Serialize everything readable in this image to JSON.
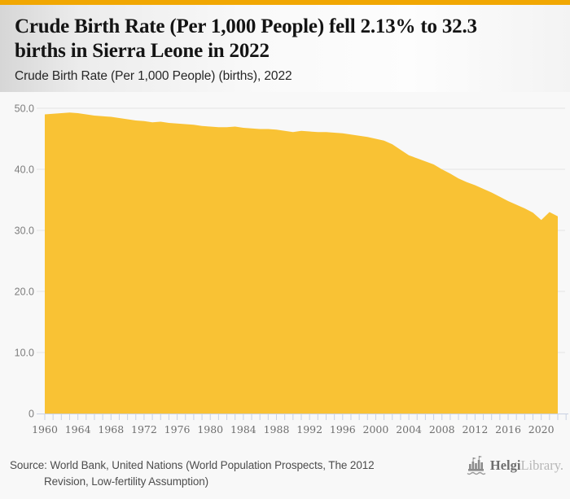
{
  "page": {
    "accent_bar_color": "#F1A702",
    "background_color": "#f8f8f8"
  },
  "header": {
    "title_line1": "Crude Birth Rate (Per 1,000 People) fell 2.13% to 32.3",
    "title_line2": "births in Sierra Leone in 2022",
    "title_full": "Crude Birth Rate (Per 1,000 People) fell 2.13% to 32.3 births in Sierra Leone in 2022",
    "subtitle": "Crude Birth Rate (Per 1,000 People) (births), 2022"
  },
  "chart_data": {
    "type": "area",
    "title": "Crude Birth Rate (Per 1,000 People) (births), 2022",
    "series_name": "Crude Birth Rate (Per 1,000 People)",
    "unit": "births",
    "area_color": "#F9C234",
    "grid": true,
    "legend_position": "none",
    "xlabel": "",
    "ylabel": "",
    "xlim": [
      1960,
      2023
    ],
    "ylim": [
      0,
      50
    ],
    "x": [
      1960,
      1961,
      1962,
      1963,
      1964,
      1965,
      1966,
      1967,
      1968,
      1969,
      1970,
      1971,
      1972,
      1973,
      1974,
      1975,
      1976,
      1977,
      1978,
      1979,
      1980,
      1981,
      1982,
      1983,
      1984,
      1985,
      1986,
      1987,
      1988,
      1989,
      1990,
      1991,
      1992,
      1993,
      1994,
      1995,
      1996,
      1997,
      1998,
      1999,
      2000,
      2001,
      2002,
      2003,
      2004,
      2005,
      2006,
      2007,
      2008,
      2009,
      2010,
      2011,
      2012,
      2013,
      2014,
      2015,
      2016,
      2017,
      2018,
      2019,
      2020,
      2021,
      2022
    ],
    "values": [
      49.0,
      49.1,
      49.2,
      49.3,
      49.2,
      49.0,
      48.8,
      48.7,
      48.6,
      48.4,
      48.2,
      48.0,
      47.9,
      47.7,
      47.8,
      47.6,
      47.5,
      47.4,
      47.3,
      47.1,
      47.0,
      46.9,
      46.9,
      47.0,
      46.8,
      46.7,
      46.6,
      46.6,
      46.5,
      46.3,
      46.1,
      46.3,
      46.2,
      46.1,
      46.1,
      46.0,
      45.9,
      45.7,
      45.5,
      45.3,
      45.0,
      44.7,
      44.1,
      43.2,
      42.3,
      41.8,
      41.3,
      40.8,
      40.0,
      39.3,
      38.5,
      37.9,
      37.4,
      36.8,
      36.2,
      35.5,
      34.8,
      34.2,
      33.6,
      32.9,
      31.7,
      33.0,
      32.3
    ],
    "yticks": [
      {
        "value": 0,
        "label": "0"
      },
      {
        "value": 10,
        "label": "10.0"
      },
      {
        "value": 20,
        "label": "20.0"
      },
      {
        "value": 30,
        "label": "30.0"
      },
      {
        "value": 40,
        "label": "40.0"
      },
      {
        "value": 50,
        "label": "50.0"
      }
    ],
    "xtick_labels": [
      1960,
      1964,
      1968,
      1972,
      1976,
      1980,
      1984,
      1988,
      1992,
      1996,
      2000,
      2004,
      2008,
      2012,
      2016,
      2020
    ],
    "minor_ticks_every_year_from": 1960,
    "minor_ticks_every_year_to": 2023,
    "gridline_color": "#e4e4e4",
    "axis_line_color": "#c9d1e2",
    "tick_color": "#c9d1e2",
    "tick_label_color": "#6f6f6f",
    "ytick_label_color": "#7d7d7d"
  },
  "footer": {
    "source_line1": "Source: World Bank, United Nations (World Population Prospects, The 2012",
    "source_line2": "Revision, Low-fertility Assumption)",
    "source_full": "Source: World Bank, United Nations (World Population Prospects, The 2012 Revision, Low-fertility Assumption)",
    "logo": {
      "brand_primary": "Helgi",
      "brand_secondary": "Library.",
      "icon": "castle-icon"
    }
  }
}
